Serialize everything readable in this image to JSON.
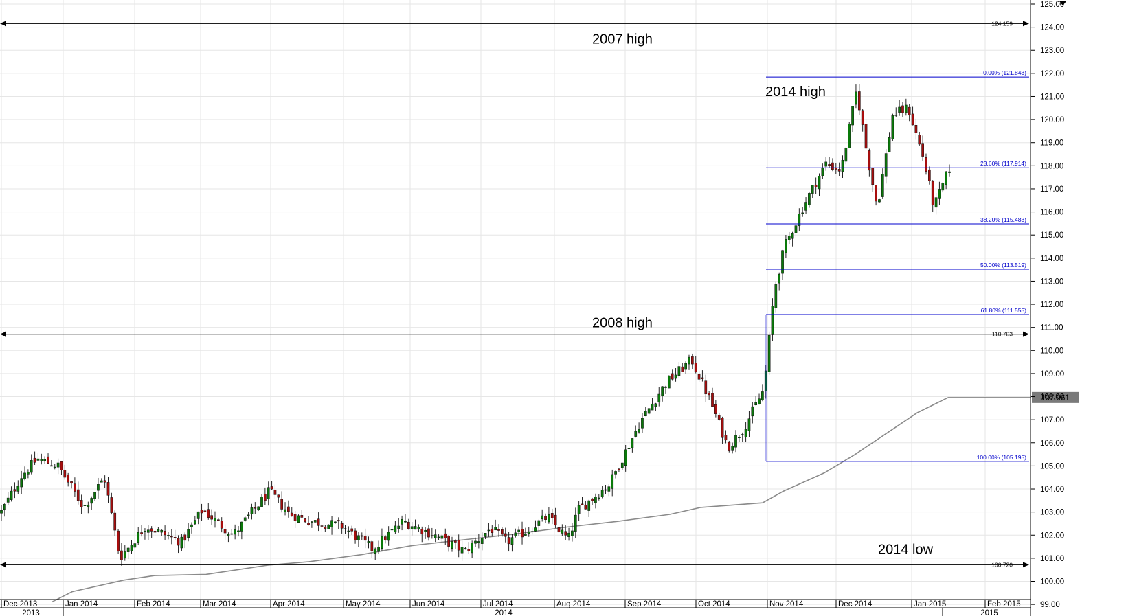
{
  "chart_data": {
    "type": "candlestick",
    "y_axis": {
      "min": 99.0,
      "max": 125.0,
      "step": 1.0,
      "side": "right"
    },
    "x_axis": {
      "months": [
        "Dec 2013",
        "Jan 2014",
        "Feb 2014",
        "Mar 2014",
        "Apr 2014",
        "May 2014",
        "Jun 2014",
        "Jul 2014",
        "Aug 2014",
        "Sep 2014",
        "Oct 2014",
        "Nov 2014",
        "Dec 2014",
        "Jan 2015",
        "Feb 2015"
      ],
      "years": [
        "2013",
        "2014",
        "2015"
      ]
    },
    "grid": true,
    "annotations": [
      {
        "text": "2007 high",
        "value": 124.159
      },
      {
        "text": "2008 high",
        "value": 110.703
      },
      {
        "text": "2014 low",
        "value": 100.72
      },
      {
        "text": "2014 high",
        "value": 121.843
      }
    ],
    "horizontal_levels": [
      {
        "label": "124.159",
        "value": 124.159
      },
      {
        "label": "110.703",
        "value": 110.703
      },
      {
        "label": "100.720",
        "value": 100.72
      }
    ],
    "fibonacci": [
      {
        "label": "0.00% (121.843)",
        "value": 121.843
      },
      {
        "label": "23.60% (117.914)",
        "value": 117.914
      },
      {
        "label": "38.20% (115.483)",
        "value": 115.483
      },
      {
        "label": "50.00% (113.519)",
        "value": 113.519
      },
      {
        "label": "61.80% (111.555)",
        "value": 111.555
      },
      {
        "label": "100.00% (105.195)",
        "value": 105.195
      }
    ],
    "last_value": {
      "label": "107.961",
      "value": 107.961
    },
    "moving_average": {
      "points": [
        [
          0.05,
          99.1
        ],
        [
          0.07,
          99.55
        ],
        [
          0.12,
          100.05
        ],
        [
          0.15,
          100.25
        ],
        [
          0.2,
          100.3
        ],
        [
          0.26,
          100.7
        ],
        [
          0.3,
          100.85
        ],
        [
          0.35,
          101.15
        ],
        [
          0.4,
          101.55
        ],
        [
          0.45,
          101.8
        ],
        [
          0.5,
          102.05
        ],
        [
          0.55,
          102.35
        ],
        [
          0.6,
          102.6
        ],
        [
          0.65,
          102.9
        ],
        [
          0.68,
          103.2
        ],
        [
          0.74,
          103.4
        ],
        [
          0.76,
          103.9
        ],
        [
          0.8,
          104.7
        ],
        [
          0.83,
          105.5
        ],
        [
          0.86,
          106.4
        ],
        [
          0.89,
          107.3
        ],
        [
          0.92,
          107.961
        ]
      ]
    },
    "price_path": [
      [
        0,
        103.0
      ],
      [
        0.02,
        104.6
      ],
      [
        0.035,
        105.3
      ],
      [
        0.055,
        105.0
      ],
      [
        0.08,
        103.2
      ],
      [
        0.1,
        104.5
      ],
      [
        0.115,
        101.0
      ],
      [
        0.14,
        102.4
      ],
      [
        0.175,
        101.7
      ],
      [
        0.195,
        103.1
      ],
      [
        0.225,
        102.0
      ],
      [
        0.26,
        103.9
      ],
      [
        0.28,
        102.9
      ],
      [
        0.3,
        102.6
      ],
      [
        0.33,
        102.4
      ],
      [
        0.36,
        101.4
      ],
      [
        0.39,
        102.6
      ],
      [
        0.42,
        102.0
      ],
      [
        0.45,
        101.3
      ],
      [
        0.475,
        102.3
      ],
      [
        0.49,
        101.7
      ],
      [
        0.51,
        102.2
      ],
      [
        0.53,
        102.8
      ],
      [
        0.55,
        101.8
      ],
      [
        0.56,
        103.1
      ],
      [
        0.59,
        104.2
      ],
      [
        0.62,
        106.9
      ],
      [
        0.645,
        108.6
      ],
      [
        0.67,
        109.6
      ],
      [
        0.69,
        107.6
      ],
      [
        0.705,
        105.8
      ],
      [
        0.72,
        106.6
      ],
      [
        0.74,
        108.3
      ],
      [
        0.75,
        112.6
      ],
      [
        0.76,
        114.5
      ],
      [
        0.78,
        116.4
      ],
      [
        0.8,
        118.1
      ],
      [
        0.815,
        117.8
      ],
      [
        0.83,
        121.3
      ],
      [
        0.84,
        118.5
      ],
      [
        0.85,
        116.2
      ],
      [
        0.865,
        120.2
      ],
      [
        0.88,
        120.5
      ],
      [
        0.895,
        118.3
      ],
      [
        0.905,
        116.2
      ],
      [
        0.92,
        117.9
      ]
    ]
  },
  "icons": {
    "top-right-marker": "triangle-down-icon"
  },
  "colors": {
    "bull": "#0a7a0a",
    "bear": "#a80e0e",
    "fib": "#0000cc",
    "ma": "#8a8a8a",
    "grid": "#e6e6e6"
  }
}
